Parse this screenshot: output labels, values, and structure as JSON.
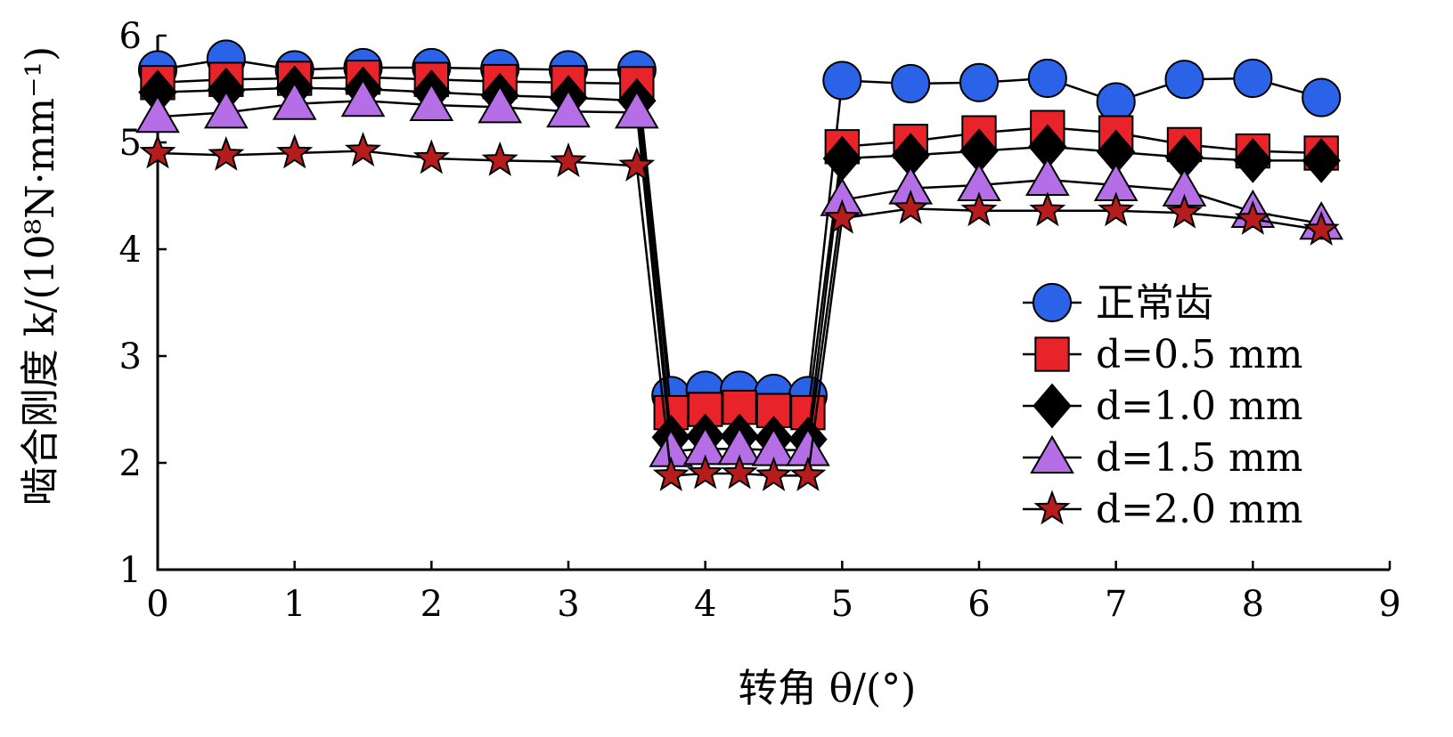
{
  "chart_data": {
    "type": "line",
    "title": "",
    "xlabel": "转角 θ/(°)",
    "ylabel": "啮合刚度 k/(10⁸N·mm⁻¹)",
    "xlim": [
      0,
      9
    ],
    "ylim": [
      1,
      6
    ],
    "xticks": [
      "0",
      "1",
      "2",
      "3",
      "4",
      "5",
      "6",
      "7",
      "8",
      "9"
    ],
    "yticks": [
      "1",
      "2",
      "3",
      "4",
      "5",
      "6"
    ],
    "grid": false,
    "legend_position": "right",
    "series": [
      {
        "name": "正常齿",
        "marker": "circle",
        "color": "#2a62e8",
        "points": [
          [
            0,
            5.68
          ],
          [
            0.5,
            5.78
          ],
          [
            1,
            5.68
          ],
          [
            1.5,
            5.7
          ],
          [
            2,
            5.7
          ],
          [
            2.5,
            5.69
          ],
          [
            3,
            5.68
          ],
          [
            3.5,
            5.68
          ],
          [
            3.75,
            2.63
          ],
          [
            4,
            2.68
          ],
          [
            4.25,
            2.68
          ],
          [
            4.5,
            2.65
          ],
          [
            4.75,
            2.63
          ],
          [
            5,
            5.58
          ],
          [
            5.5,
            5.55
          ],
          [
            6,
            5.56
          ],
          [
            6.5,
            5.6
          ],
          [
            7,
            5.38
          ],
          [
            7.5,
            5.59
          ],
          [
            8,
            5.6
          ],
          [
            8.5,
            5.42
          ]
        ]
      },
      {
        "name": "d=0.5 mm",
        "marker": "square",
        "color": "#e8232a",
        "points": [
          [
            0,
            5.56
          ],
          [
            0.5,
            5.59
          ],
          [
            1,
            5.6
          ],
          [
            1.5,
            5.61
          ],
          [
            2,
            5.59
          ],
          [
            2.5,
            5.57
          ],
          [
            3,
            5.56
          ],
          [
            3.5,
            5.55
          ],
          [
            3.75,
            2.47
          ],
          [
            4,
            2.5
          ],
          [
            4.25,
            2.52
          ],
          [
            4.5,
            2.49
          ],
          [
            4.75,
            2.47
          ],
          [
            5,
            4.96
          ],
          [
            5.5,
            5.01
          ],
          [
            6,
            5.09
          ],
          [
            6.5,
            5.14
          ],
          [
            7,
            5.09
          ],
          [
            7.5,
            4.98
          ],
          [
            8,
            4.92
          ],
          [
            8.5,
            4.9
          ]
        ]
      },
      {
        "name": "d=1.0 mm",
        "marker": "diamond",
        "color": "#000000",
        "points": [
          [
            0,
            5.47
          ],
          [
            0.5,
            5.49
          ],
          [
            1,
            5.51
          ],
          [
            1.5,
            5.5
          ],
          [
            2,
            5.47
          ],
          [
            2.5,
            5.44
          ],
          [
            3,
            5.42
          ],
          [
            3.5,
            5.39
          ],
          [
            3.75,
            2.24
          ],
          [
            4,
            2.25
          ],
          [
            4.25,
            2.25
          ],
          [
            4.5,
            2.23
          ],
          [
            4.75,
            2.22
          ],
          [
            5,
            4.85
          ],
          [
            5.5,
            4.88
          ],
          [
            6,
            4.92
          ],
          [
            6.5,
            4.96
          ],
          [
            7,
            4.91
          ],
          [
            7.5,
            4.86
          ],
          [
            8,
            4.83
          ],
          [
            8.5,
            4.83
          ]
        ]
      },
      {
        "name": "d=1.5 mm",
        "marker": "triangle",
        "color": "#b56ee6",
        "points": [
          [
            0,
            5.24
          ],
          [
            0.5,
            5.28
          ],
          [
            1,
            5.36
          ],
          [
            1.5,
            5.39
          ],
          [
            2,
            5.35
          ],
          [
            2.5,
            5.33
          ],
          [
            3,
            5.29
          ],
          [
            3.5,
            5.28
          ],
          [
            3.75,
            2.11
          ],
          [
            4,
            2.13
          ],
          [
            4.25,
            2.13
          ],
          [
            4.5,
            2.12
          ],
          [
            4.75,
            2.12
          ],
          [
            5,
            4.46
          ],
          [
            5.5,
            4.57
          ],
          [
            6,
            4.6
          ],
          [
            6.5,
            4.65
          ],
          [
            7,
            4.6
          ],
          [
            7.5,
            4.55
          ],
          [
            8,
            4.35
          ],
          [
            8.5,
            4.24
          ]
        ]
      },
      {
        "name": "d=2.0 mm",
        "marker": "star",
        "color": "#b71c1c",
        "points": [
          [
            0,
            4.9
          ],
          [
            0.5,
            4.88
          ],
          [
            1,
            4.9
          ],
          [
            1.5,
            4.92
          ],
          [
            2,
            4.85
          ],
          [
            2.5,
            4.83
          ],
          [
            3,
            4.82
          ],
          [
            3.5,
            4.78
          ],
          [
            3.75,
            1.88
          ],
          [
            4,
            1.9
          ],
          [
            4.25,
            1.9
          ],
          [
            4.5,
            1.88
          ],
          [
            4.75,
            1.88
          ],
          [
            5,
            4.29
          ],
          [
            5.5,
            4.38
          ],
          [
            6,
            4.36
          ],
          [
            6.5,
            4.36
          ],
          [
            7,
            4.36
          ],
          [
            7.5,
            4.34
          ],
          [
            8,
            4.28
          ],
          [
            8.5,
            4.18
          ]
        ]
      }
    ]
  }
}
